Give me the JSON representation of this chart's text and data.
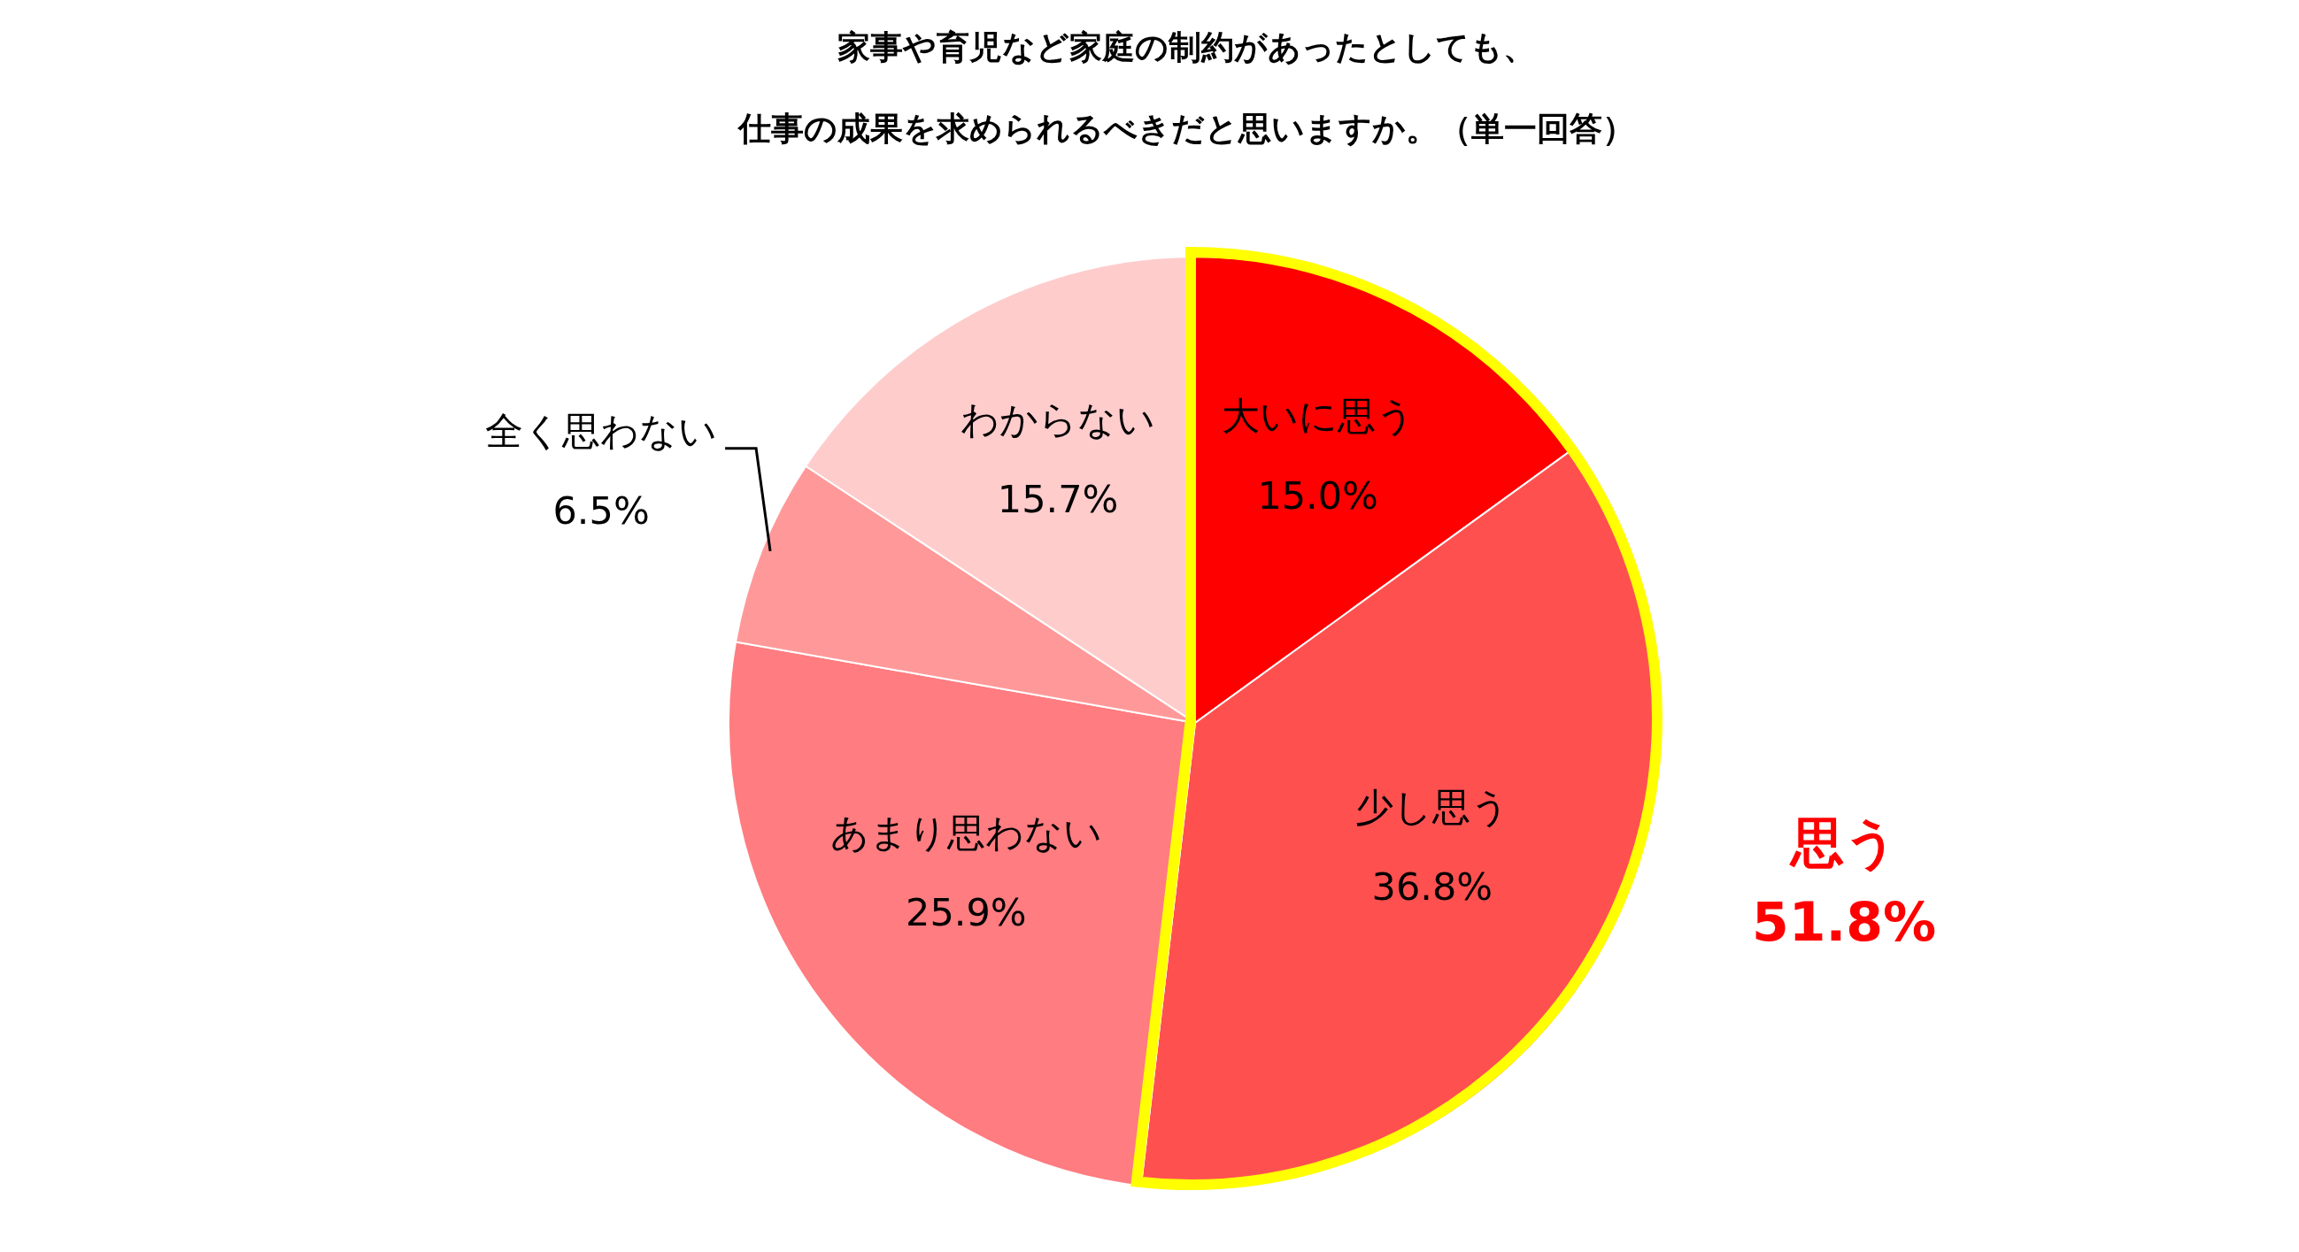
{
  "chart_data": {
    "type": "pie",
    "title": "家事や育児など家庭の制約があったとしても、",
    "subtitle": "仕事の成果を求められるべきだと思いますか。（単一回答）",
    "categories": [
      "大いに思う",
      "少し思う",
      "あまり思わない",
      "全く思わない",
      "わからない"
    ],
    "values": [
      15.0,
      36.8,
      25.9,
      6.5,
      15.7
    ],
    "value_labels": [
      "15.0%",
      "36.8%",
      "25.9%",
      "6.5%",
      "15.7%"
    ],
    "colors": [
      "#ff0000",
      "#ff5050",
      "#ff7c80",
      "#ff9999",
      "#ffcccc"
    ],
    "annotations": [
      "思う\n51.8%"
    ]
  }
}
